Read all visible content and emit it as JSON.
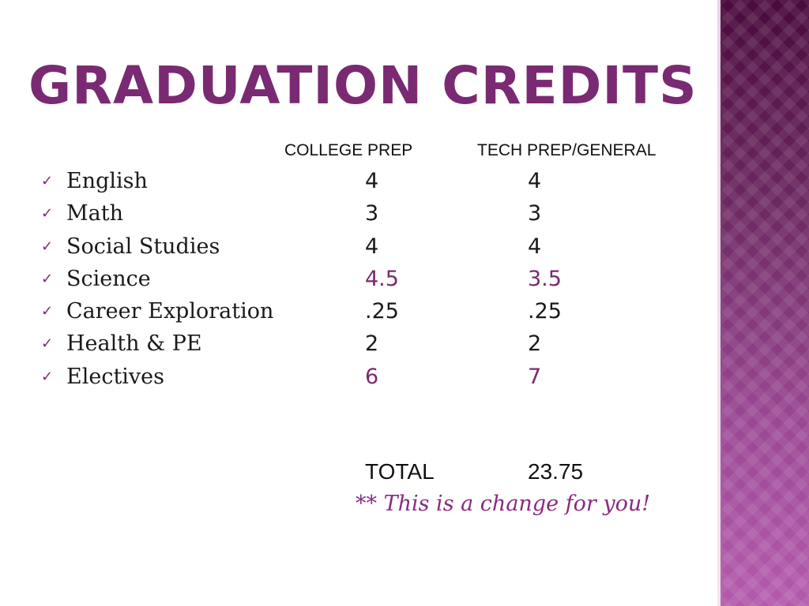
{
  "slide": {
    "title": "Graduation Credits",
    "columns": {
      "college": "COLLEGE PREP",
      "tech": "TECH PREP/GENERAL"
    },
    "bullet_icon": "checkmark-icon",
    "rows": [
      {
        "subject": "English",
        "college": "4",
        "tech": "4"
      },
      {
        "subject": "Math",
        "college": "3",
        "tech": "3"
      },
      {
        "subject": "Social Studies",
        "college": "4",
        "tech": "4"
      },
      {
        "subject": "Science",
        "college": "4.5",
        "tech": "3.5"
      },
      {
        "subject": "Career Exploration",
        "college": ".25",
        "tech": ".25"
      },
      {
        "subject": "Health & PE",
        "college": "2",
        "tech": "2"
      },
      {
        "subject": "Electives",
        "college": "6",
        "tech": "7"
      }
    ],
    "total_label": "TOTAL",
    "total_value": "23.75",
    "note": "** This is a change for you!",
    "colors": {
      "accent": "#7a2a72",
      "band_top": "#4a0a3c",
      "band_bottom": "#b45aad"
    }
  }
}
